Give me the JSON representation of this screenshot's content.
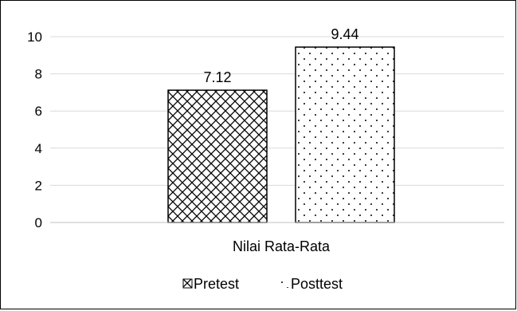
{
  "chart_data": {
    "type": "bar",
    "title": "",
    "xlabel": "",
    "ylabel": "",
    "categories": [
      "Nilai Rata-Rata"
    ],
    "series": [
      {
        "name": "Pretest",
        "values": [
          7.12
        ],
        "pattern": "crosshatch",
        "color": "#000000"
      },
      {
        "name": "Posttest",
        "values": [
          9.44
        ],
        "pattern": "dots",
        "color": "#000000"
      }
    ],
    "ylim": [
      0,
      10
    ],
    "yticks": [
      "0",
      "2",
      "4",
      "6",
      "8",
      "10"
    ],
    "data_labels": [
      "7.12",
      "9.44"
    ],
    "grid": true,
    "legend_position": "bottom"
  }
}
